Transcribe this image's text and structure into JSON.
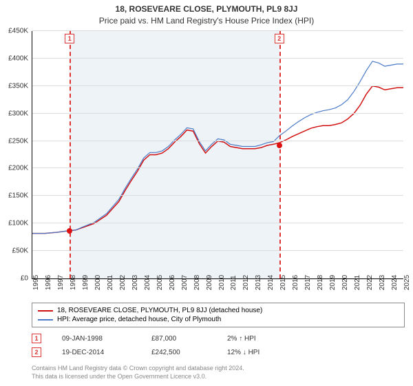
{
  "title": "18, ROSEVEARE CLOSE, PLYMOUTH, PL9 8JJ",
  "subtitle": "Price paid vs. HM Land Registry's House Price Index (HPI)",
  "chart": {
    "type": "line",
    "x_start_year": 1995,
    "x_end_year": 2025,
    "ylim": [
      0,
      450000
    ],
    "ytick_step": 50000,
    "yticks": [
      "£0",
      "£50K",
      "£100K",
      "£150K",
      "£200K",
      "£250K",
      "£300K",
      "£350K",
      "£400K",
      "£450K"
    ],
    "xticks": [
      "1995",
      "1996",
      "1997",
      "1998",
      "1999",
      "2000",
      "2001",
      "2002",
      "2003",
      "2004",
      "2005",
      "2006",
      "2007",
      "2008",
      "2009",
      "2010",
      "2011",
      "2012",
      "2013",
      "2014",
      "2015",
      "2016",
      "2017",
      "2018",
      "2019",
      "2020",
      "2021",
      "2022",
      "2023",
      "2024",
      "2025"
    ],
    "grid_color": "#dddddd",
    "band_color": "#eef3f8",
    "band_start": 1998.02,
    "band_end": 2014.97,
    "vdash_color": "#dd3333",
    "background_color": "#ffffff",
    "series": [
      {
        "name": "property",
        "color": "#d11111",
        "width": 1.5,
        "points": [
          [
            1995,
            82000
          ],
          [
            1996,
            82000
          ],
          [
            1997,
            84000
          ],
          [
            1998,
            87000
          ],
          [
            1998.5,
            88000
          ],
          [
            1999,
            92000
          ],
          [
            2000,
            100000
          ],
          [
            2001,
            115000
          ],
          [
            2002,
            140000
          ],
          [
            2002.5,
            160000
          ],
          [
            2003,
            178000
          ],
          [
            2003.5,
            195000
          ],
          [
            2004,
            215000
          ],
          [
            2004.5,
            225000
          ],
          [
            2005,
            225000
          ],
          [
            2005.5,
            228000
          ],
          [
            2006,
            236000
          ],
          [
            2006.5,
            248000
          ],
          [
            2007,
            258000
          ],
          [
            2007.5,
            270000
          ],
          [
            2008,
            268000
          ],
          [
            2008.5,
            245000
          ],
          [
            2009,
            228000
          ],
          [
            2009.5,
            240000
          ],
          [
            2010,
            250000
          ],
          [
            2010.5,
            248000
          ],
          [
            2011,
            240000
          ],
          [
            2011.5,
            238000
          ],
          [
            2012,
            236000
          ],
          [
            2012.5,
            236000
          ],
          [
            2013,
            236000
          ],
          [
            2013.5,
            238000
          ],
          [
            2014,
            242000
          ],
          [
            2014.5,
            244000
          ],
          [
            2015,
            247000
          ],
          [
            2015.5,
            252000
          ],
          [
            2016,
            258000
          ],
          [
            2016.5,
            263000
          ],
          [
            2017,
            268000
          ],
          [
            2017.5,
            273000
          ],
          [
            2018,
            276000
          ],
          [
            2018.5,
            278000
          ],
          [
            2019,
            278000
          ],
          [
            2019.5,
            280000
          ],
          [
            2020,
            283000
          ],
          [
            2020.5,
            290000
          ],
          [
            2021,
            300000
          ],
          [
            2021.5,
            315000
          ],
          [
            2022,
            335000
          ],
          [
            2022.5,
            350000
          ],
          [
            2023,
            348000
          ],
          [
            2023.5,
            343000
          ],
          [
            2024,
            345000
          ],
          [
            2024.5,
            347000
          ],
          [
            2025,
            347000
          ]
        ]
      },
      {
        "name": "hpi",
        "color": "#4a7ac7",
        "width": 1.2,
        "points": [
          [
            1995,
            82000
          ],
          [
            1996,
            82000
          ],
          [
            1997,
            84000
          ],
          [
            1998,
            87000
          ],
          [
            1998.5,
            88000
          ],
          [
            1999,
            93000
          ],
          [
            2000,
            102000
          ],
          [
            2001,
            118000
          ],
          [
            2002,
            144000
          ],
          [
            2002.5,
            164000
          ],
          [
            2003,
            182000
          ],
          [
            2003.5,
            199000
          ],
          [
            2004,
            219000
          ],
          [
            2004.5,
            229000
          ],
          [
            2005,
            229000
          ],
          [
            2005.5,
            232000
          ],
          [
            2006,
            240000
          ],
          [
            2006.5,
            252000
          ],
          [
            2007,
            262000
          ],
          [
            2007.5,
            274000
          ],
          [
            2008,
            272000
          ],
          [
            2008.5,
            249000
          ],
          [
            2009,
            232000
          ],
          [
            2009.5,
            244000
          ],
          [
            2010,
            254000
          ],
          [
            2010.5,
            252000
          ],
          [
            2011,
            244000
          ],
          [
            2011.5,
            242000
          ],
          [
            2012,
            240000
          ],
          [
            2012.5,
            240000
          ],
          [
            2013,
            240000
          ],
          [
            2013.5,
            243000
          ],
          [
            2014,
            247000
          ],
          [
            2014.5,
            249000
          ],
          [
            2015,
            260000
          ],
          [
            2015.5,
            268000
          ],
          [
            2016,
            277000
          ],
          [
            2016.5,
            285000
          ],
          [
            2017,
            292000
          ],
          [
            2017.5,
            298000
          ],
          [
            2018,
            302000
          ],
          [
            2018.5,
            305000
          ],
          [
            2019,
            307000
          ],
          [
            2019.5,
            310000
          ],
          [
            2020,
            316000
          ],
          [
            2020.5,
            325000
          ],
          [
            2021,
            340000
          ],
          [
            2021.5,
            358000
          ],
          [
            2022,
            378000
          ],
          [
            2022.5,
            395000
          ],
          [
            2023,
            392000
          ],
          [
            2023.5,
            386000
          ],
          [
            2024,
            388000
          ],
          [
            2024.5,
            390000
          ],
          [
            2025,
            390000
          ]
        ]
      }
    ],
    "transactions": [
      {
        "idx": "1",
        "year": 1998.02,
        "value": 87000
      },
      {
        "idx": "2",
        "year": 2014.97,
        "value": 242500
      }
    ]
  },
  "legend": {
    "items": [
      {
        "color": "#d11111",
        "label": "18, ROSEVEARE CLOSE, PLYMOUTH, PL9 8JJ (detached house)"
      },
      {
        "color": "#4a7ac7",
        "label": "HPI: Average price, detached house, City of Plymouth"
      }
    ]
  },
  "tx_table": [
    {
      "idx": "1",
      "date": "09-JAN-1998",
      "price": "£87,000",
      "delta": "2% ↑ HPI"
    },
    {
      "idx": "2",
      "date": "19-DEC-2014",
      "price": "£242,500",
      "delta": "12% ↓ HPI"
    }
  ],
  "footer_line1": "Contains HM Land Registry data © Crown copyright and database right 2024.",
  "footer_line2": "This data is licensed under the Open Government Licence v3.0."
}
